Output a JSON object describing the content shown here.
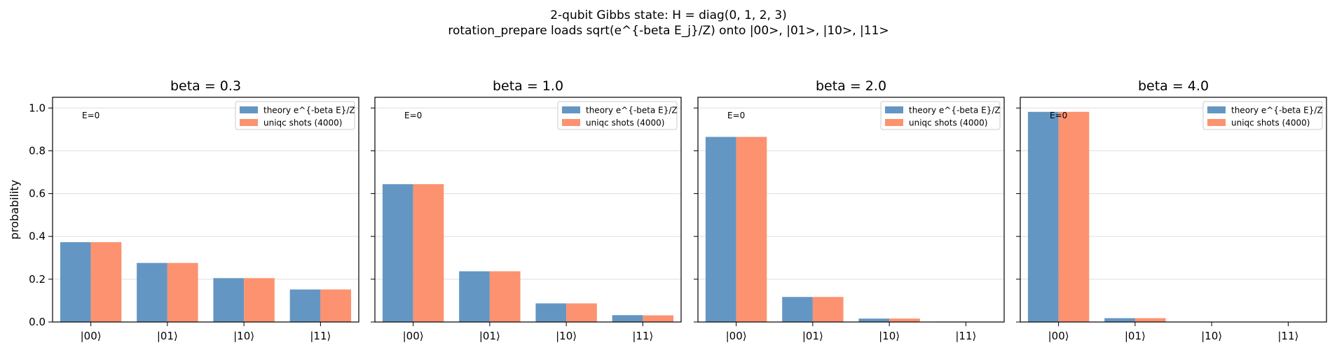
{
  "figure": {
    "title_line1": "2-qubit Gibbs state: H = diag(0, 1, 2, 3)",
    "title_line2": "rotation_prepare loads sqrt(e^{-beta E_j}/Z) onto |00>, |01>, |10>, |11>"
  },
  "colors": {
    "theory": "#6496c3",
    "shots": "#fc9270"
  },
  "chart_data": [
    {
      "type": "bar",
      "title": "beta = 0.3",
      "categories": [
        "|00⟩",
        "|01⟩",
        "|10⟩",
        "|11⟩"
      ],
      "ylabel": "probability",
      "ylim": [
        0,
        1.05
      ],
      "yticks": [
        "0.0",
        "0.2",
        "0.4",
        "0.6",
        "0.8",
        "1.0"
      ],
      "grid": "y",
      "legend_position": "top-right",
      "annotation": "E=0",
      "series": [
        {
          "name": "theory e^{-beta E}/Z",
          "values": [
            0.373,
            0.276,
            0.205,
            0.152
          ]
        },
        {
          "name": "uniqc shots (4000)",
          "values": [
            0.373,
            0.276,
            0.205,
            0.152
          ]
        }
      ]
    },
    {
      "type": "bar",
      "title": "beta = 1.0",
      "categories": [
        "|00⟩",
        "|01⟩",
        "|10⟩",
        "|11⟩"
      ],
      "ylim": [
        0,
        1.05
      ],
      "grid": "y",
      "legend_position": "top-right",
      "annotation": "E=0",
      "series": [
        {
          "name": "theory e^{-beta E}/Z",
          "values": [
            0.644,
            0.237,
            0.087,
            0.032
          ]
        },
        {
          "name": "uniqc shots (4000)",
          "values": [
            0.644,
            0.237,
            0.087,
            0.031
          ]
        }
      ]
    },
    {
      "type": "bar",
      "title": "beta = 2.0",
      "categories": [
        "|00⟩",
        "|01⟩",
        "|10⟩",
        "|11⟩"
      ],
      "ylim": [
        0,
        1.05
      ],
      "grid": "y",
      "legend_position": "top-right",
      "annotation": "E=0",
      "series": [
        {
          "name": "theory e^{-beta E}/Z",
          "values": [
            0.865,
            0.117,
            0.016,
            0.002
          ]
        },
        {
          "name": "uniqc shots (4000)",
          "values": [
            0.865,
            0.117,
            0.016,
            0.002
          ]
        }
      ]
    },
    {
      "type": "bar",
      "title": "beta = 4.0",
      "categories": [
        "|00⟩",
        "|01⟩",
        "|10⟩",
        "|11⟩"
      ],
      "ylim": [
        0,
        1.05
      ],
      "grid": "y",
      "legend_position": "top-right",
      "annotation": "E=0",
      "series": [
        {
          "name": "theory e^{-beta E}/Z",
          "values": [
            0.982,
            0.018,
            0.0003,
            0.0
          ]
        },
        {
          "name": "uniqc shots (4000)",
          "values": [
            0.982,
            0.018,
            0.0003,
            0.0
          ]
        }
      ]
    }
  ]
}
